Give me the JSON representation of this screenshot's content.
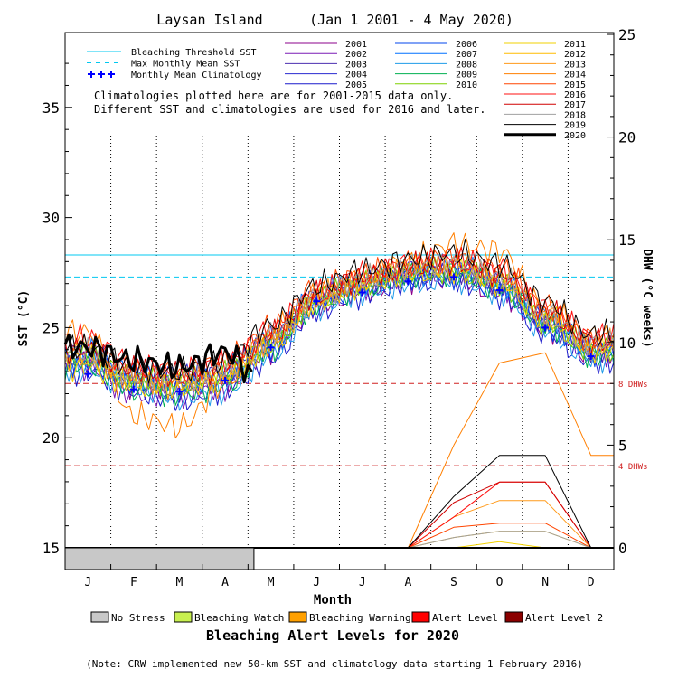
{
  "chart_data": {
    "type": "line",
    "title": "Laysan Island",
    "date_range": "(Jan 1 2001 - 4 May 2020)",
    "xlabel": "Month",
    "ylabel_left": "SST (°C)",
    "ylabel_right": "DHW (°C weeks)",
    "x_ticks": [
      "J",
      "F",
      "M",
      "A",
      "M",
      "J",
      "J",
      "A",
      "S",
      "O",
      "N",
      "D"
    ],
    "sst_ylim": [
      15,
      38.4
    ],
    "sst_ticks": [
      15,
      20,
      25,
      30,
      35
    ],
    "dhw_ylim": [
      0,
      25
    ],
    "dhw_ticks": [
      0,
      5,
      10,
      15,
      20,
      25
    ],
    "bleaching_threshold_sst": 28.3,
    "max_monthly_mean_sst": 27.3,
    "monthly_mean_climatology": [
      {
        "month": 0.5,
        "sst": 22.9
      },
      {
        "month": 1.5,
        "sst": 22.2
      },
      {
        "month": 2.5,
        "sst": 22.1
      },
      {
        "month": 3.5,
        "sst": 22.6
      },
      {
        "month": 4.5,
        "sst": 24.1
      },
      {
        "month": 5.5,
        "sst": 26.2
      },
      {
        "month": 6.5,
        "sst": 26.6
      },
      {
        "month": 7.5,
        "sst": 27.1
      },
      {
        "month": 8.5,
        "sst": 27.3
      },
      {
        "month": 9.5,
        "sst": 26.7
      },
      {
        "month": 10.5,
        "sst": 25.0
      },
      {
        "month": 11.5,
        "sst": 23.7
      }
    ],
    "dhw_threshold_lines": [
      {
        "dhw": 8,
        "label": "8 DHWs"
      },
      {
        "dhw": 4,
        "label": "4 DHWs"
      }
    ],
    "legend_reference": [
      {
        "label": "Bleaching Threshold SST",
        "color": "#00c8f0",
        "style": "solid"
      },
      {
        "label": "Max Monthly Mean SST",
        "color": "#00c8f0",
        "style": "dashed"
      },
      {
        "label": "Monthly Mean Climatology",
        "color": "#0000ff",
        "style": "plus"
      }
    ],
    "climatology_note": [
      "Climatologies plotted here are for 2001-2015 data only.",
      "Different SST and climatologies are used for 2016 and later."
    ],
    "series": [
      {
        "name": "2001",
        "color": "#8b008b",
        "w": 1,
        "sst": [
          23.6,
          22.4,
          22.3,
          22.6,
          24.0,
          26.0,
          26.7,
          27.2,
          27.3,
          26.6,
          25.0,
          23.8
        ],
        "dhw": [
          0,
          0,
          0,
          0,
          0,
          0,
          0,
          0,
          0,
          0,
          0,
          0
        ]
      },
      {
        "name": "2002",
        "color": "#7a1cb5",
        "w": 1,
        "sst": [
          23.2,
          22.0,
          21.9,
          22.3,
          24.2,
          26.3,
          26.9,
          27.4,
          27.5,
          26.9,
          25.2,
          23.9
        ],
        "dhw": [
          0,
          0,
          0,
          0,
          0,
          0,
          0,
          0,
          0,
          0,
          0,
          0
        ]
      },
      {
        "name": "2003",
        "color": "#4b2fb0",
        "w": 1,
        "sst": [
          23.8,
          22.6,
          22.2,
          22.8,
          24.4,
          26.1,
          26.8,
          27.3,
          27.6,
          27.0,
          25.3,
          24.0
        ],
        "dhw": [
          0,
          0,
          0,
          0,
          0,
          0,
          0,
          0,
          0,
          0,
          0,
          0
        ]
      },
      {
        "name": "2004",
        "color": "#2a2ad0",
        "w": 1,
        "sst": [
          23.5,
          22.8,
          22.9,
          23.0,
          24.6,
          26.4,
          27.0,
          27.6,
          27.7,
          27.0,
          25.4,
          24.2
        ],
        "dhw": [
          0,
          0,
          0,
          0,
          0,
          0,
          0,
          0,
          0,
          0,
          0,
          0
        ]
      },
      {
        "name": "2005",
        "color": "#1a1acc",
        "w": 1,
        "sst": [
          23.0,
          22.1,
          21.7,
          22.2,
          23.6,
          25.8,
          26.5,
          27.1,
          27.2,
          26.5,
          24.8,
          23.5
        ],
        "dhw": [
          0,
          0,
          0,
          0,
          0,
          0,
          0,
          0,
          0,
          0,
          0,
          0
        ]
      },
      {
        "name": "2006",
        "color": "#0044ee",
        "w": 1,
        "sst": [
          23.4,
          22.5,
          22.4,
          22.7,
          24.1,
          26.2,
          26.9,
          27.3,
          27.4,
          26.8,
          25.1,
          23.9
        ],
        "dhw": [
          0,
          0,
          0,
          0,
          0,
          0,
          0,
          0,
          0,
          0,
          0,
          0
        ]
      },
      {
        "name": "2007",
        "color": "#0070ff",
        "w": 1,
        "sst": [
          23.9,
          22.9,
          22.6,
          23.1,
          24.5,
          26.5,
          27.1,
          27.6,
          27.8,
          27.1,
          25.5,
          24.1
        ],
        "dhw": [
          0,
          0,
          0,
          0,
          0,
          0,
          0,
          0,
          0,
          0,
          0,
          0
        ]
      },
      {
        "name": "2008",
        "color": "#1e9be8",
        "w": 1,
        "sst": [
          23.1,
          22.3,
          21.8,
          22.1,
          23.8,
          25.9,
          26.6,
          27.0,
          27.2,
          26.6,
          24.9,
          23.6
        ],
        "dhw": [
          0,
          0,
          0,
          0,
          0,
          0,
          0,
          0,
          0,
          0,
          0,
          0
        ]
      },
      {
        "name": "2009",
        "color": "#00b050",
        "w": 1,
        "sst": [
          23.3,
          22.2,
          22.0,
          22.4,
          24.0,
          26.1,
          26.8,
          27.4,
          27.5,
          26.8,
          25.2,
          23.8
        ],
        "dhw": [
          0,
          0,
          0,
          0,
          0,
          0,
          0,
          0,
          0,
          0,
          0,
          0
        ]
      },
      {
        "name": "2010",
        "color": "#7fd000",
        "w": 1,
        "sst": [
          23.7,
          22.7,
          22.5,
          22.9,
          24.3,
          26.3,
          27.0,
          27.5,
          27.6,
          27.0,
          25.3,
          24.0
        ],
        "dhw": [
          0,
          0,
          0,
          0,
          0,
          0,
          0,
          0,
          0,
          0,
          0,
          0
        ]
      },
      {
        "name": "2011",
        "color": "#f2d200",
        "w": 1,
        "sst": [
          23.2,
          22.4,
          22.3,
          22.8,
          24.2,
          26.2,
          27.0,
          27.5,
          27.6,
          27.1,
          25.4,
          24.0
        ],
        "dhw": [
          0,
          0,
          0,
          0,
          0,
          0,
          0,
          0,
          0,
          0.3,
          0,
          0
        ]
      },
      {
        "name": "2012",
        "color": "#ffbb00",
        "w": 1,
        "sst": [
          23.6,
          22.6,
          22.4,
          22.8,
          24.3,
          26.3,
          27.1,
          27.7,
          27.8,
          27.2,
          25.6,
          24.2
        ],
        "dhw": [
          0,
          0,
          0,
          0,
          0,
          0,
          0,
          0,
          0.5,
          0.8,
          0.8,
          0
        ]
      },
      {
        "name": "2013",
        "color": "#ff9a1a",
        "w": 1,
        "sst": [
          23.8,
          22.7,
          22.5,
          23.0,
          24.4,
          26.4,
          27.2,
          27.8,
          28.0,
          27.4,
          25.7,
          24.3
        ],
        "dhw": [
          0,
          0,
          0,
          0,
          0,
          0,
          0,
          0,
          1.5,
          2.3,
          2.3,
          0
        ]
      },
      {
        "name": "2014",
        "color": "#ff7f00",
        "w": 1,
        "sst": [
          24.8,
          21.0,
          20.5,
          22.5,
          24.8,
          26.5,
          27.2,
          28.0,
          28.8,
          28.5,
          25.9,
          24.6
        ],
        "dhw": [
          0,
          0,
          0,
          0,
          0,
          0,
          0,
          0,
          5.0,
          9.0,
          9.5,
          4.5
        ]
      },
      {
        "name": "2015",
        "color": "#ff4500",
        "w": 1,
        "sst": [
          24.2,
          23.0,
          22.9,
          23.5,
          25.0,
          26.8,
          27.4,
          27.9,
          28.2,
          27.7,
          26.0,
          24.5
        ],
        "dhw": [
          0,
          0,
          0,
          0,
          0,
          0,
          0,
          0,
          1.0,
          1.2,
          1.2,
          0
        ]
      },
      {
        "name": "2016",
        "color": "#ff1010",
        "w": 1,
        "sst": [
          24.5,
          23.3,
          23.0,
          23.4,
          24.9,
          26.6,
          27.4,
          27.9,
          28.1,
          27.6,
          25.9,
          24.6
        ],
        "dhw": [
          0,
          0,
          0,
          0,
          0,
          0,
          0,
          0,
          1.5,
          3.2,
          3.2,
          0
        ]
      },
      {
        "name": "2017",
        "color": "#d00000",
        "w": 1,
        "sst": [
          24.0,
          23.1,
          22.8,
          23.2,
          24.7,
          26.5,
          27.3,
          27.8,
          28.0,
          27.5,
          25.8,
          24.4
        ],
        "dhw": [
          0,
          0,
          0,
          0,
          0,
          0,
          0,
          0,
          2.2,
          3.2,
          3.2,
          0
        ]
      },
      {
        "name": "2018",
        "color": "#a0a0a0",
        "w": 1,
        "sst": [
          23.9,
          22.8,
          22.7,
          23.1,
          24.6,
          26.4,
          27.2,
          27.7,
          27.9,
          27.3,
          25.6,
          24.3
        ],
        "dhw": [
          0,
          0,
          0,
          0,
          0,
          0,
          0,
          0,
          0.5,
          0.8,
          0.8,
          0
        ]
      },
      {
        "name": "2019",
        "color": "#000000",
        "w": 1,
        "sst": [
          24.1,
          23.2,
          23.0,
          23.5,
          25.1,
          26.9,
          27.6,
          28.1,
          28.4,
          27.9,
          26.2,
          24.7
        ],
        "dhw": [
          0,
          0,
          0,
          0,
          0,
          0,
          0,
          0,
          2.5,
          4.5,
          4.5,
          0
        ]
      },
      {
        "name": "2020",
        "color": "#000000",
        "w": 3,
        "sst": [
          24.1,
          23.5,
          23.2,
          23.9,
          22.0
        ],
        "dhw": [
          0,
          0,
          0,
          0,
          0
        ]
      }
    ],
    "alert_bar_2020": {
      "label": "No Stress",
      "months": [
        0,
        4.13
      ]
    },
    "alert_legend": [
      {
        "label": "No Stress",
        "color": "#c8c8c8"
      },
      {
        "label": "Bleaching Watch",
        "color": "#c8f050"
      },
      {
        "label": "Bleaching Warning",
        "color": "#ffa000"
      },
      {
        "label": "Alert Level 1",
        "color": "#ff0000"
      },
      {
        "label": "Alert Level 2",
        "color": "#8b0000"
      }
    ],
    "alert_title": "Bleaching Alert Levels for 2020",
    "footnote": "(Note: CRW implemented new 50-km SST and climatology data starting 1 February 2016)"
  }
}
